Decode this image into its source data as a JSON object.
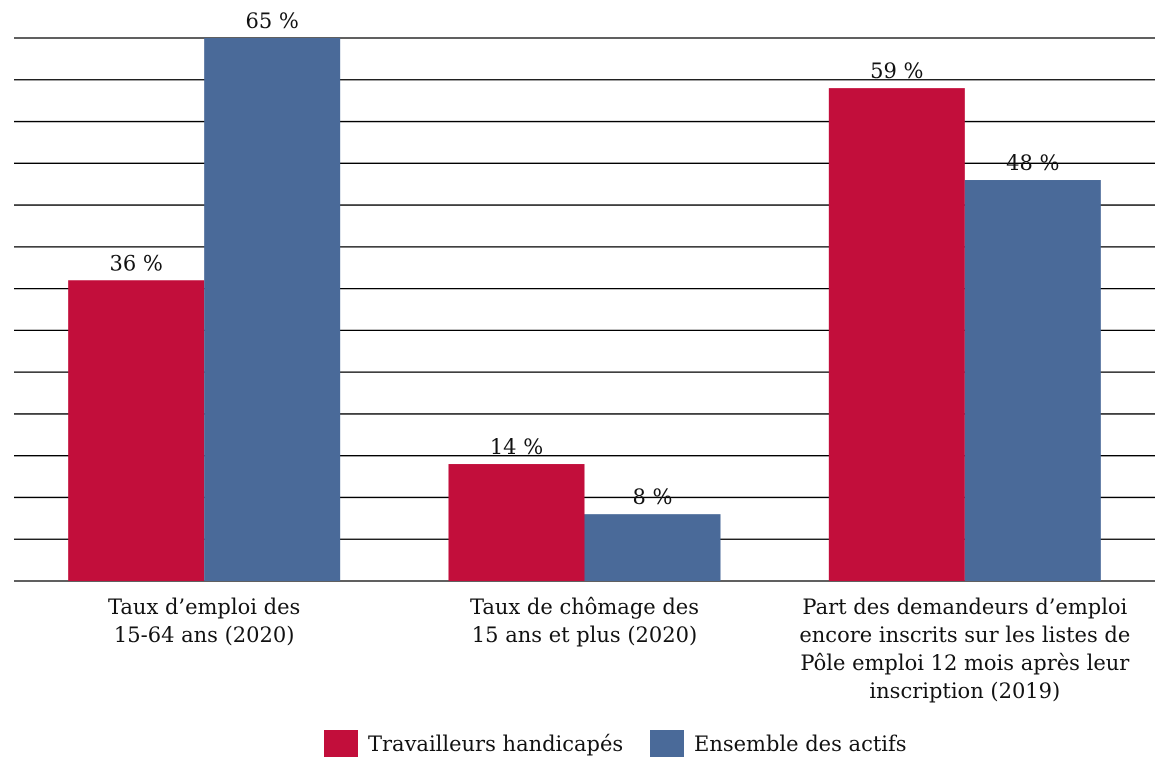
{
  "chart_data": {
    "type": "bar",
    "categories": [
      [
        "Taux d’emploi des",
        "15-64 ans (2020)"
      ],
      [
        "Taux de chômage des",
        "15 ans et plus (2020)"
      ],
      [
        "Part des demandeurs d’emploi",
        "encore inscrits sur les listes de",
        "Pôle emploi 12 mois après leur",
        "inscription (2019)"
      ]
    ],
    "series": [
      {
        "name": "Travailleurs handicapés",
        "values": [
          36,
          14,
          59
        ],
        "labels": [
          "36 %",
          "14 %",
          "59 %"
        ],
        "color": "#C20E3B"
      },
      {
        "name": "Ensemble des actifs",
        "values": [
          65,
          8,
          48
        ],
        "labels": [
          "65 %",
          "8 %",
          "48 %"
        ],
        "color": "#4A6A99"
      }
    ],
    "ylim": [
      0,
      65
    ],
    "grid_step": 5,
    "grid": true,
    "y_axis_labels_shown": false,
    "legend_position": "bottom"
  }
}
